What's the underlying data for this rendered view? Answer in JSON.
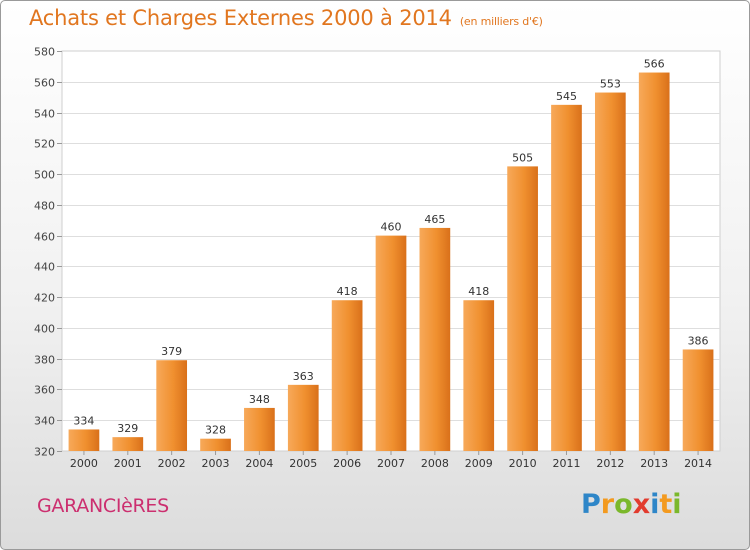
{
  "header": {
    "title": "Achats et Charges Externes 2000 à 2014",
    "subtitle": "(en milliers d'€)"
  },
  "footer": {
    "city": "GARANCIèRES",
    "brand": {
      "letters": [
        "P",
        "r",
        "o",
        "x",
        "i",
        "t",
        "i"
      ],
      "colors": [
        "#2e86c8",
        "#f39a1f",
        "#7bb82b",
        "#e23b2e",
        "#2e86c8",
        "#f39a1f",
        "#7bb82b"
      ]
    }
  },
  "chart_data": {
    "type": "bar",
    "title": "Achats et Charges Externes 2000 à 2014",
    "subtitle": "(en milliers d'€)",
    "categories": [
      "2000",
      "2001",
      "2002",
      "2003",
      "2004",
      "2005",
      "2006",
      "2007",
      "2008",
      "2009",
      "2010",
      "2011",
      "2012",
      "2013",
      "2014"
    ],
    "values": [
      334,
      329,
      379,
      328,
      348,
      363,
      418,
      460,
      465,
      418,
      505,
      545,
      553,
      566,
      386
    ],
    "ylim": [
      320,
      580
    ],
    "yticks": [
      320,
      340,
      360,
      380,
      400,
      420,
      440,
      460,
      480,
      500,
      520,
      540,
      560,
      580
    ],
    "grid": true,
    "bar_color": "#f0902f",
    "bar_color_dark": "#d9701a"
  }
}
